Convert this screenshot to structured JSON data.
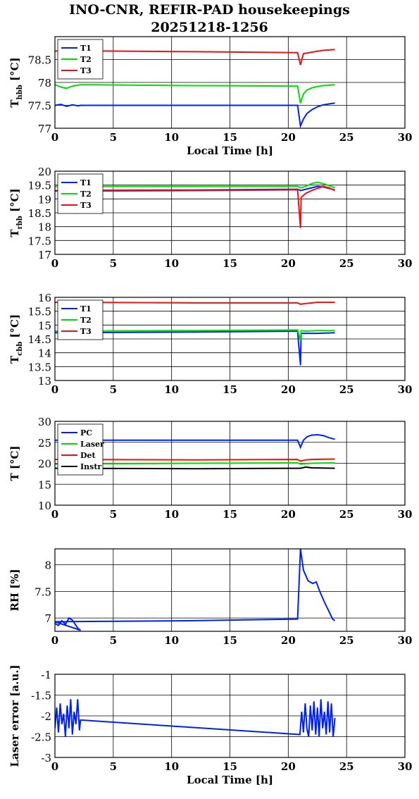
{
  "title": "INO-CNR, REFIR-PAD housekeepings",
  "subtitle": "20251218-1256",
  "colors": {
    "blue": "#0022ee",
    "green": "#00dd00",
    "red": "#ee1111",
    "black": "#000000"
  },
  "chart_data": [
    {
      "type": "line",
      "ylabel_main": "T",
      "ylabel_sub": "hbb",
      "ylabel_unit": "[°C]",
      "xlabel": "Local Time [h]",
      "xlim": [
        0,
        30
      ],
      "ylim": [
        77,
        79
      ],
      "xticks": [
        0,
        5,
        10,
        15,
        20,
        25,
        30
      ],
      "yticks": [
        77,
        77.5,
        78,
        78.5
      ],
      "ytick_labels": [
        "77",
        "77.5",
        "78",
        "78.5"
      ],
      "legend": "top-left",
      "series": [
        {
          "name": "T1",
          "color": "#0022ee",
          "x": [
            0,
            0.5,
            1.0,
            1.5,
            2.0,
            2.2,
            12,
            20.8,
            21.05,
            21.3,
            21.6,
            22,
            22.5,
            23,
            23.5,
            24
          ],
          "y": [
            77.5,
            77.52,
            77.48,
            77.51,
            77.49,
            77.5,
            77.5,
            77.5,
            77.05,
            77.2,
            77.32,
            77.4,
            77.47,
            77.51,
            77.53,
            77.55
          ]
        },
        {
          "name": "T2",
          "color": "#00dd00",
          "x": [
            0,
            0.5,
            1.0,
            1.5,
            2.0,
            2.2,
            12,
            20.8,
            21.05,
            21.3,
            21.6,
            22,
            22.5,
            23,
            23.5,
            24
          ],
          "y": [
            77.95,
            77.9,
            77.87,
            77.92,
            77.94,
            77.95,
            77.93,
            77.92,
            77.55,
            77.75,
            77.83,
            77.88,
            77.91,
            77.93,
            77.94,
            77.95
          ]
        },
        {
          "name": "T3",
          "color": "#ee1111",
          "x": [
            0,
            0.5,
            1.0,
            1.5,
            2.0,
            2.2,
            12,
            20.8,
            21.05,
            21.3,
            21.6,
            22,
            22.5,
            23,
            23.5,
            24
          ],
          "y": [
            78.68,
            78.7,
            78.69,
            78.7,
            78.7,
            78.69,
            78.67,
            78.65,
            78.38,
            78.63,
            78.64,
            78.66,
            78.68,
            78.7,
            78.71,
            78.72
          ]
        }
      ]
    },
    {
      "type": "line",
      "ylabel_main": "T",
      "ylabel_sub": "rbb",
      "ylabel_unit": "[°C]",
      "xlim": [
        0,
        30
      ],
      "ylim": [
        17,
        20
      ],
      "xticks": [
        0,
        5,
        10,
        15,
        20,
        25,
        30
      ],
      "yticks": [
        17,
        17.5,
        18,
        18.5,
        19,
        19.5,
        20
      ],
      "ytick_labels": [
        "17",
        "17.5",
        "18",
        "18.5",
        "19",
        "19.5",
        "20"
      ],
      "legend": "top-left",
      "series": [
        {
          "name": "T1",
          "color": "#0022ee",
          "x": [
            0,
            12,
            20.8,
            21.05,
            21.5,
            22,
            22.5,
            23,
            23.5,
            24
          ],
          "y": [
            19.3,
            19.32,
            19.35,
            19.3,
            19.35,
            19.4,
            19.45,
            19.43,
            19.38,
            19.32
          ]
        },
        {
          "name": "T2",
          "color": "#00dd00",
          "x": [
            0,
            12,
            20.8,
            21.05,
            21.5,
            22,
            22.5,
            23,
            23.5,
            24
          ],
          "y": [
            19.45,
            19.45,
            19.45,
            19.4,
            19.45,
            19.55,
            19.6,
            19.55,
            19.48,
            19.4
          ]
        },
        {
          "name": "T3",
          "color": "#ee1111",
          "x": [
            0,
            12,
            20.8,
            21.05,
            21.1,
            21.5,
            22,
            22.5,
            23,
            23.5,
            24
          ],
          "y": [
            19.28,
            19.3,
            19.33,
            17.95,
            19.05,
            19.2,
            19.3,
            19.38,
            19.45,
            19.4,
            19.3
          ]
        }
      ]
    },
    {
      "type": "line",
      "ylabel_main": "T",
      "ylabel_sub": "cbb",
      "ylabel_unit": "[°C]",
      "xlim": [
        0,
        30
      ],
      "ylim": [
        13,
        16
      ],
      "xticks": [
        0,
        5,
        10,
        15,
        20,
        25,
        30
      ],
      "yticks": [
        13,
        13.5,
        14,
        14.5,
        15,
        15.5,
        16
      ],
      "ytick_labels": [
        "13",
        "13.5",
        "14",
        "14.5",
        "15",
        "15.5",
        "16"
      ],
      "legend": "top-left",
      "series": [
        {
          "name": "T1",
          "color": "#0022ee",
          "x": [
            0,
            12,
            20.8,
            21.05,
            21.1,
            21.5,
            22.5,
            24
          ],
          "y": [
            14.72,
            14.75,
            14.78,
            13.55,
            14.7,
            14.7,
            14.7,
            14.72
          ]
        },
        {
          "name": "T2",
          "color": "#00dd00",
          "x": [
            0,
            12,
            20.8,
            21.05,
            21.1,
            21.5,
            22.5,
            24
          ],
          "y": [
            14.78,
            14.8,
            14.82,
            14.45,
            14.8,
            14.78,
            14.8,
            14.8
          ]
        },
        {
          "name": "T3",
          "color": "#ee1111",
          "x": [
            0,
            12,
            20.8,
            21.05,
            21.5,
            22.5,
            24
          ],
          "y": [
            15.82,
            15.8,
            15.8,
            15.75,
            15.78,
            15.82,
            15.82
          ]
        }
      ]
    },
    {
      "type": "line",
      "ylabel_main": "T [°C]",
      "ylabel_sub": "",
      "ylabel_unit": "",
      "xlim": [
        0,
        30
      ],
      "ylim": [
        10,
        30
      ],
      "xticks": [
        0,
        5,
        10,
        15,
        20,
        25,
        30
      ],
      "yticks": [
        10,
        15,
        20,
        25,
        30
      ],
      "ytick_labels": [
        "10",
        "15",
        "20",
        "25",
        "30"
      ],
      "legend": "top-left",
      "series": [
        {
          "name": "PC",
          "color": "#0022ee",
          "x": [
            0,
            12,
            20.8,
            21.05,
            21.3,
            21.6,
            22,
            22.5,
            23,
            23.5,
            24
          ],
          "y": [
            25.5,
            25.5,
            25.5,
            23.8,
            25.5,
            26.3,
            26.7,
            26.8,
            26.6,
            26.1,
            25.7
          ]
        },
        {
          "name": "Laser",
          "color": "#00dd00",
          "x": [
            0,
            12,
            20.8,
            21.05,
            21.5,
            22,
            24
          ],
          "y": [
            19.8,
            20.0,
            20.1,
            19.8,
            19.9,
            20.0,
            20.1
          ]
        },
        {
          "name": "Det",
          "color": "#ee1111",
          "x": [
            0,
            12,
            20.8,
            21.05,
            21.5,
            22,
            24
          ],
          "y": [
            20.9,
            20.8,
            20.9,
            20.5,
            20.8,
            20.9,
            21.0
          ]
        },
        {
          "name": "Instr",
          "color": "#000000",
          "x": [
            0,
            12,
            20.8,
            21.05,
            21.5,
            22,
            24
          ],
          "y": [
            18.8,
            18.7,
            18.8,
            18.8,
            19.1,
            18.9,
            18.8
          ]
        }
      ]
    },
    {
      "type": "line",
      "ylabel_main": "RH [%]",
      "ylabel_sub": "",
      "ylabel_unit": "",
      "xlim": [
        0,
        30
      ],
      "ylim": [
        6.75,
        8.3
      ],
      "xticks": [
        0,
        5,
        10,
        15,
        20,
        25,
        30
      ],
      "yticks": [
        7,
        7.5,
        8
      ],
      "ytick_labels": [
        "7",
        "7.5",
        "8"
      ],
      "series": [
        {
          "name": "",
          "color": "#0022ee",
          "x": [
            0,
            0.3,
            0.6,
            0.9,
            1.2,
            1.5,
            1.8,
            2.0,
            2.2,
            0,
            12,
            20.8,
            21.05,
            21.3,
            21.7,
            22.1,
            22.4,
            22.7,
            23.1,
            23.5,
            23.8,
            24
          ],
          "y": [
            6.9,
            6.86,
            6.95,
            6.88,
            7.0,
            6.96,
            6.86,
            6.8,
            6.77,
            6.93,
            6.95,
            6.98,
            8.3,
            7.9,
            7.7,
            7.65,
            7.68,
            7.5,
            7.3,
            7.12,
            6.98,
            6.95
          ]
        }
      ]
    },
    {
      "type": "line",
      "ylabel_main": "Laser error [a.u.]",
      "ylabel_sub": "",
      "ylabel_unit": "",
      "xlabel": "Local Time [h]",
      "xlim": [
        0,
        30
      ],
      "ylim": [
        -3,
        -1
      ],
      "xticks": [
        0,
        5,
        10,
        15,
        20,
        25,
        30
      ],
      "yticks": [
        -3,
        -2.5,
        -2,
        -1.5,
        -1
      ],
      "ytick_labels": [
        "-3",
        "-2.5",
        "-2",
        "-1.5",
        "-1"
      ],
      "series": [
        {
          "name": "",
          "color": "#0022ee",
          "x": [
            0,
            0.15,
            0.3,
            0.45,
            0.6,
            0.75,
            0.9,
            1.05,
            1.2,
            1.35,
            1.5,
            1.65,
            1.8,
            1.95,
            2.1,
            2.2,
            21.0,
            21.15,
            21.3,
            21.45,
            21.6,
            21.75,
            21.9,
            22.05,
            22.2,
            22.35,
            22.5,
            22.65,
            22.8,
            22.95,
            23.1,
            23.25,
            23.4,
            23.55,
            23.7,
            23.85,
            24.0
          ],
          "y": [
            -2.3,
            -1.8,
            -2.4,
            -1.7,
            -2.2,
            -1.95,
            -2.5,
            -1.75,
            -2.3,
            -1.6,
            -2.45,
            -1.9,
            -2.2,
            -1.6,
            -2.35,
            -2.1,
            -2.45,
            -1.9,
            -2.4,
            -1.7,
            -2.3,
            -2.5,
            -1.75,
            -2.35,
            -1.65,
            -2.45,
            -1.8,
            -2.5,
            -1.6,
            -2.3,
            -1.9,
            -2.45,
            -1.65,
            -2.4,
            -1.7,
            -2.5,
            -2.05
          ]
        }
      ]
    }
  ]
}
